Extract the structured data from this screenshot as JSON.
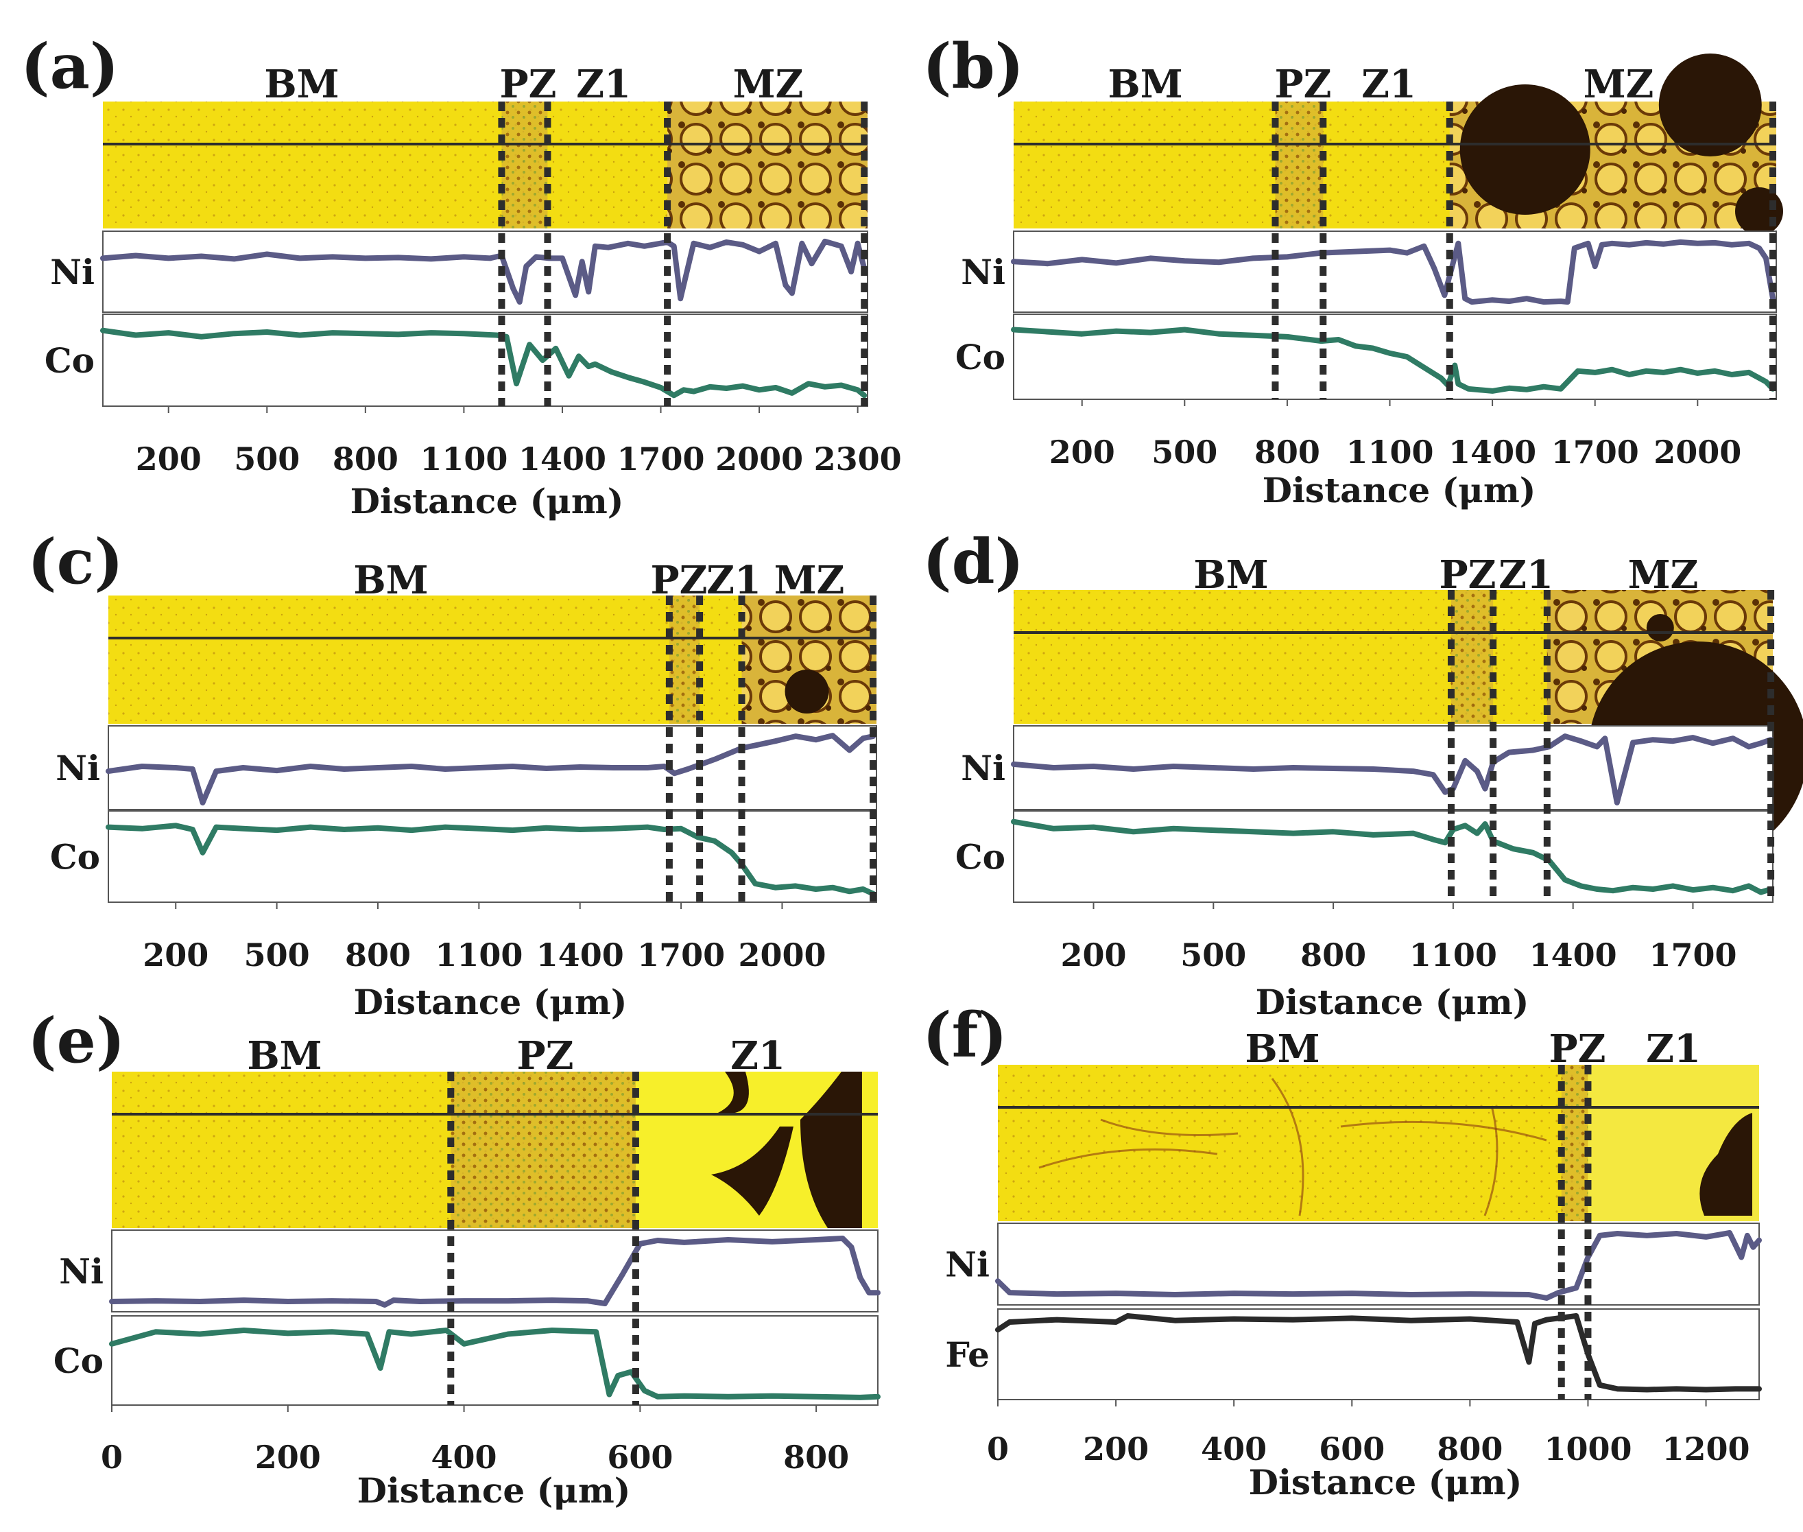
{
  "figure": {
    "colors": {
      "ni_line": "#5b5b86",
      "co_line": "#2f7b64",
      "fe_line": "#2a2a2a",
      "strip_yellow": "#f3dd12",
      "dark_phase": "#2a1606",
      "divider": "#2d2d2d"
    }
  },
  "chart_data": [
    {
      "type": "line",
      "panel_label": "(a)",
      "xlabel": "Distance (μm)",
      "x_ticks": [
        200,
        500,
        800,
        1100,
        1400,
        1700,
        2000,
        2300
      ],
      "xlim": [
        0,
        2330
      ],
      "zones": [
        "BM",
        "PZ",
        "Z1",
        "MZ"
      ],
      "boundaries": [
        1215,
        1355,
        1720,
        2320
      ],
      "series": [
        {
          "name": "Ni",
          "color": "#5b5b86",
          "x": [
            0,
            100,
            200,
            300,
            400,
            500,
            600,
            700,
            800,
            900,
            1000,
            1100,
            1180,
            1215,
            1250,
            1270,
            1290,
            1320,
            1360,
            1400,
            1440,
            1460,
            1480,
            1500,
            1540,
            1600,
            1650,
            1720,
            1740,
            1760,
            1800,
            1850,
            1900,
            1950,
            2000,
            2050,
            2080,
            2100,
            2130,
            2160,
            2200,
            2250,
            2280,
            2300,
            2320
          ],
          "values": [
            0.7,
            0.74,
            0.7,
            0.73,
            0.69,
            0.76,
            0.7,
            0.72,
            0.7,
            0.71,
            0.69,
            0.72,
            0.7,
            0.74,
            0.25,
            0.05,
            0.58,
            0.72,
            0.7,
            0.7,
            0.15,
            0.65,
            0.2,
            0.88,
            0.86,
            0.92,
            0.88,
            0.94,
            0.88,
            0.1,
            0.92,
            0.86,
            0.94,
            0.9,
            0.8,
            0.92,
            0.3,
            0.18,
            0.92,
            0.62,
            0.95,
            0.88,
            0.5,
            0.92,
            0.55
          ]
        },
        {
          "name": "Co",
          "color": "#2f7b64",
          "x": [
            0,
            100,
            200,
            300,
            400,
            500,
            600,
            700,
            800,
            900,
            1000,
            1100,
            1200,
            1230,
            1260,
            1300,
            1340,
            1380,
            1420,
            1450,
            1480,
            1500,
            1550,
            1600,
            1650,
            1700,
            1740,
            1770,
            1800,
            1850,
            1900,
            1950,
            2000,
            2050,
            2100,
            2150,
            2200,
            2250,
            2300,
            2320
          ],
          "values": [
            0.88,
            0.82,
            0.85,
            0.8,
            0.84,
            0.86,
            0.82,
            0.85,
            0.84,
            0.83,
            0.85,
            0.84,
            0.82,
            0.8,
            0.2,
            0.7,
            0.5,
            0.65,
            0.3,
            0.55,
            0.42,
            0.45,
            0.35,
            0.28,
            0.22,
            0.15,
            0.05,
            0.12,
            0.1,
            0.16,
            0.14,
            0.17,
            0.12,
            0.15,
            0.08,
            0.2,
            0.16,
            0.18,
            0.12,
            0.05
          ]
        }
      ]
    },
    {
      "type": "line",
      "panel_label": "(b)",
      "xlabel": "Distance (μm)",
      "x_ticks": [
        200,
        500,
        800,
        1100,
        1400,
        1700,
        2000
      ],
      "xlim": [
        0,
        2230
      ],
      "zones": [
        "BM",
        "PZ",
        "Z1",
        "MZ"
      ],
      "boundaries": [
        765,
        905,
        1275,
        2220
      ],
      "series": [
        {
          "name": "Ni",
          "color": "#5b5b86",
          "x": [
            0,
            100,
            200,
            300,
            400,
            500,
            600,
            700,
            800,
            900,
            1000,
            1100,
            1150,
            1200,
            1230,
            1260,
            1300,
            1320,
            1340,
            1400,
            1450,
            1500,
            1550,
            1600,
            1620,
            1640,
            1680,
            1700,
            1720,
            1750,
            1800,
            1850,
            1900,
            1950,
            2000,
            2050,
            2100,
            2150,
            2180,
            2200,
            2220
          ],
          "values": [
            0.65,
            0.62,
            0.68,
            0.63,
            0.7,
            0.66,
            0.64,
            0.7,
            0.72,
            0.78,
            0.8,
            0.82,
            0.78,
            0.88,
            0.55,
            0.15,
            0.92,
            0.1,
            0.05,
            0.08,
            0.06,
            0.1,
            0.05,
            0.06,
            0.05,
            0.85,
            0.92,
            0.58,
            0.9,
            0.92,
            0.9,
            0.93,
            0.91,
            0.94,
            0.92,
            0.93,
            0.9,
            0.92,
            0.85,
            0.7,
            0.1
          ]
        },
        {
          "name": "Co",
          "color": "#2f7b64",
          "x": [
            0,
            100,
            200,
            300,
            400,
            500,
            600,
            700,
            800,
            900,
            950,
            1000,
            1050,
            1100,
            1150,
            1200,
            1250,
            1270,
            1290,
            1300,
            1330,
            1400,
            1450,
            1500,
            1550,
            1600,
            1650,
            1700,
            1750,
            1800,
            1850,
            1900,
            1950,
            2000,
            2050,
            2100,
            2150,
            2200,
            2220
          ],
          "values": [
            0.88,
            0.85,
            0.82,
            0.86,
            0.84,
            0.88,
            0.82,
            0.8,
            0.78,
            0.72,
            0.74,
            0.65,
            0.62,
            0.55,
            0.5,
            0.35,
            0.2,
            0.1,
            0.38,
            0.12,
            0.05,
            0.02,
            0.06,
            0.04,
            0.08,
            0.05,
            0.3,
            0.28,
            0.32,
            0.25,
            0.3,
            0.28,
            0.32,
            0.27,
            0.3,
            0.25,
            0.28,
            0.15,
            0.05
          ]
        }
      ]
    },
    {
      "type": "line",
      "panel_label": "(c)",
      "xlabel": "Distance (μm)",
      "x_ticks": [
        200,
        500,
        800,
        1100,
        1400,
        1700,
        2000
      ],
      "xlim": [
        0,
        2280
      ],
      "zones": [
        "BM",
        "PZ",
        "Z1",
        "MZ"
      ],
      "boundaries": [
        1665,
        1755,
        1880,
        2270
      ],
      "series": [
        {
          "name": "Ni",
          "color": "#5b5b86",
          "x": [
            0,
            100,
            200,
            250,
            280,
            320,
            400,
            500,
            600,
            700,
            800,
            900,
            1000,
            1100,
            1200,
            1300,
            1400,
            1500,
            1600,
            1650,
            1680,
            1720,
            1760,
            1800,
            1850,
            1880,
            1920,
            1980,
            2040,
            2100,
            2150,
            2200,
            2240,
            2270
          ],
          "values": [
            0.45,
            0.52,
            0.5,
            0.48,
            0.0,
            0.45,
            0.5,
            0.46,
            0.52,
            0.48,
            0.5,
            0.52,
            0.48,
            0.5,
            0.52,
            0.49,
            0.51,
            0.5,
            0.5,
            0.52,
            0.42,
            0.48,
            0.55,
            0.62,
            0.72,
            0.78,
            0.82,
            0.88,
            0.95,
            0.9,
            0.96,
            0.75,
            0.92,
            0.95
          ]
        },
        {
          "name": "Co",
          "color": "#2f7b64",
          "x": [
            0,
            100,
            200,
            250,
            280,
            320,
            400,
            500,
            600,
            700,
            800,
            900,
            1000,
            1100,
            1200,
            1300,
            1400,
            1500,
            1600,
            1650,
            1700,
            1750,
            1800,
            1850,
            1880,
            1920,
            1980,
            2040,
            2100,
            2150,
            2200,
            2240,
            2270
          ],
          "values": [
            0.88,
            0.86,
            0.9,
            0.85,
            0.55,
            0.88,
            0.86,
            0.84,
            0.88,
            0.85,
            0.87,
            0.84,
            0.88,
            0.86,
            0.84,
            0.87,
            0.85,
            0.86,
            0.88,
            0.85,
            0.86,
            0.75,
            0.7,
            0.55,
            0.4,
            0.15,
            0.1,
            0.12,
            0.08,
            0.1,
            0.05,
            0.08,
            0.02
          ]
        }
      ]
    },
    {
      "type": "line",
      "panel_label": "(d)",
      "xlabel": "Distance (μm)",
      "x_ticks": [
        200,
        500,
        800,
        1100,
        1400,
        1700
      ],
      "xlim": [
        0,
        1900
      ],
      "zones": [
        "BM",
        "PZ",
        "Z1",
        "MZ"
      ],
      "boundaries": [
        1095,
        1200,
        1335,
        1895
      ],
      "series": [
        {
          "name": "Ni",
          "color": "#5b5b86",
          "x": [
            0,
            100,
            200,
            300,
            400,
            500,
            600,
            700,
            800,
            900,
            1000,
            1050,
            1080,
            1100,
            1130,
            1160,
            1180,
            1200,
            1240,
            1300,
            1340,
            1380,
            1420,
            1460,
            1480,
            1510,
            1550,
            1600,
            1650,
            1700,
            1750,
            1800,
            1840,
            1870,
            1895
          ],
          "values": [
            0.55,
            0.5,
            0.52,
            0.48,
            0.52,
            0.5,
            0.48,
            0.5,
            0.49,
            0.48,
            0.45,
            0.4,
            0.15,
            0.2,
            0.6,
            0.45,
            0.2,
            0.58,
            0.72,
            0.75,
            0.8,
            0.95,
            0.88,
            0.8,
            0.92,
            0.0,
            0.86,
            0.9,
            0.88,
            0.93,
            0.85,
            0.92,
            0.8,
            0.85,
            0.9
          ]
        },
        {
          "name": "Co",
          "color": "#2f7b64",
          "x": [
            0,
            100,
            200,
            300,
            400,
            500,
            600,
            700,
            800,
            900,
            1000,
            1050,
            1080,
            1100,
            1130,
            1160,
            1180,
            1200,
            1250,
            1300,
            1340,
            1380,
            1420,
            1460,
            1500,
            1550,
            1600,
            1650,
            1700,
            1750,
            1800,
            1840,
            1870,
            1895
          ],
          "values": [
            0.95,
            0.86,
            0.88,
            0.82,
            0.86,
            0.84,
            0.82,
            0.8,
            0.82,
            0.78,
            0.8,
            0.72,
            0.68,
            0.85,
            0.9,
            0.8,
            0.92,
            0.7,
            0.6,
            0.55,
            0.45,
            0.2,
            0.12,
            0.08,
            0.06,
            0.1,
            0.08,
            0.12,
            0.07,
            0.1,
            0.06,
            0.12,
            0.04,
            0.08
          ]
        }
      ]
    },
    {
      "type": "line",
      "panel_label": "(e)",
      "xlabel": "Distance (μm)",
      "x_ticks": [
        0,
        200,
        400,
        600,
        800
      ],
      "xlim": [
        0,
        870
      ],
      "zones": [
        "BM",
        "PZ",
        "Z1"
      ],
      "boundaries": [
        385,
        595
      ],
      "series": [
        {
          "name": "Ni",
          "color": "#5b5b86",
          "x": [
            0,
            50,
            100,
            150,
            200,
            250,
            300,
            310,
            320,
            350,
            400,
            450,
            500,
            540,
            560,
            580,
            600,
            620,
            650,
            700,
            750,
            800,
            830,
            840,
            850,
            860,
            870
          ],
          "values": [
            0.05,
            0.06,
            0.05,
            0.07,
            0.05,
            0.06,
            0.05,
            0.0,
            0.07,
            0.05,
            0.06,
            0.06,
            0.07,
            0.06,
            0.02,
            0.45,
            0.9,
            0.95,
            0.92,
            0.96,
            0.93,
            0.96,
            0.98,
            0.85,
            0.4,
            0.18,
            0.18
          ]
        },
        {
          "name": "Co",
          "color": "#2f7b64",
          "x": [
            0,
            50,
            100,
            150,
            200,
            250,
            290,
            305,
            315,
            340,
            380,
            400,
            450,
            500,
            550,
            565,
            575,
            590,
            605,
            620,
            650,
            700,
            750,
            800,
            850,
            870
          ],
          "values": [
            0.72,
            0.88,
            0.85,
            0.9,
            0.86,
            0.88,
            0.85,
            0.4,
            0.88,
            0.85,
            0.9,
            0.72,
            0.85,
            0.9,
            0.88,
            0.05,
            0.3,
            0.35,
            0.1,
            0.02,
            0.03,
            0.02,
            0.03,
            0.02,
            0.01,
            0.02
          ]
        }
      ]
    },
    {
      "type": "line",
      "panel_label": "(f)",
      "xlabel": "Distance (μm)",
      "x_ticks": [
        0,
        200,
        400,
        600,
        800,
        1000,
        1200
      ],
      "xlim": [
        0,
        1290
      ],
      "zones": [
        "BM",
        "PZ",
        "Z1"
      ],
      "boundaries": [
        955,
        1000
      ],
      "series": [
        {
          "name": "Ni",
          "color": "#5b5b86",
          "x": [
            0,
            20,
            100,
            200,
            300,
            400,
            500,
            600,
            700,
            800,
            900,
            930,
            950,
            980,
            1000,
            1020,
            1050,
            1100,
            1150,
            1200,
            1240,
            1260,
            1270,
            1280,
            1290
          ],
          "values": [
            0.25,
            0.08,
            0.06,
            0.07,
            0.05,
            0.07,
            0.06,
            0.07,
            0.05,
            0.06,
            0.05,
            0.0,
            0.08,
            0.15,
            0.6,
            0.92,
            0.95,
            0.92,
            0.95,
            0.9,
            0.96,
            0.6,
            0.92,
            0.75,
            0.85
          ]
        },
        {
          "name": "Fe",
          "color": "#2a2a2a",
          "x": [
            0,
            20,
            100,
            200,
            220,
            300,
            400,
            500,
            600,
            700,
            800,
            880,
            900,
            910,
            930,
            960,
            980,
            1000,
            1020,
            1050,
            1100,
            1150,
            1200,
            1250,
            1290
          ],
          "values": [
            0.82,
            0.92,
            0.95,
            0.92,
            1.0,
            0.94,
            0.96,
            0.95,
            0.97,
            0.94,
            0.96,
            0.92,
            0.4,
            0.9,
            0.95,
            0.98,
            1.0,
            0.5,
            0.1,
            0.05,
            0.04,
            0.05,
            0.04,
            0.05,
            0.05
          ]
        }
      ]
    }
  ]
}
